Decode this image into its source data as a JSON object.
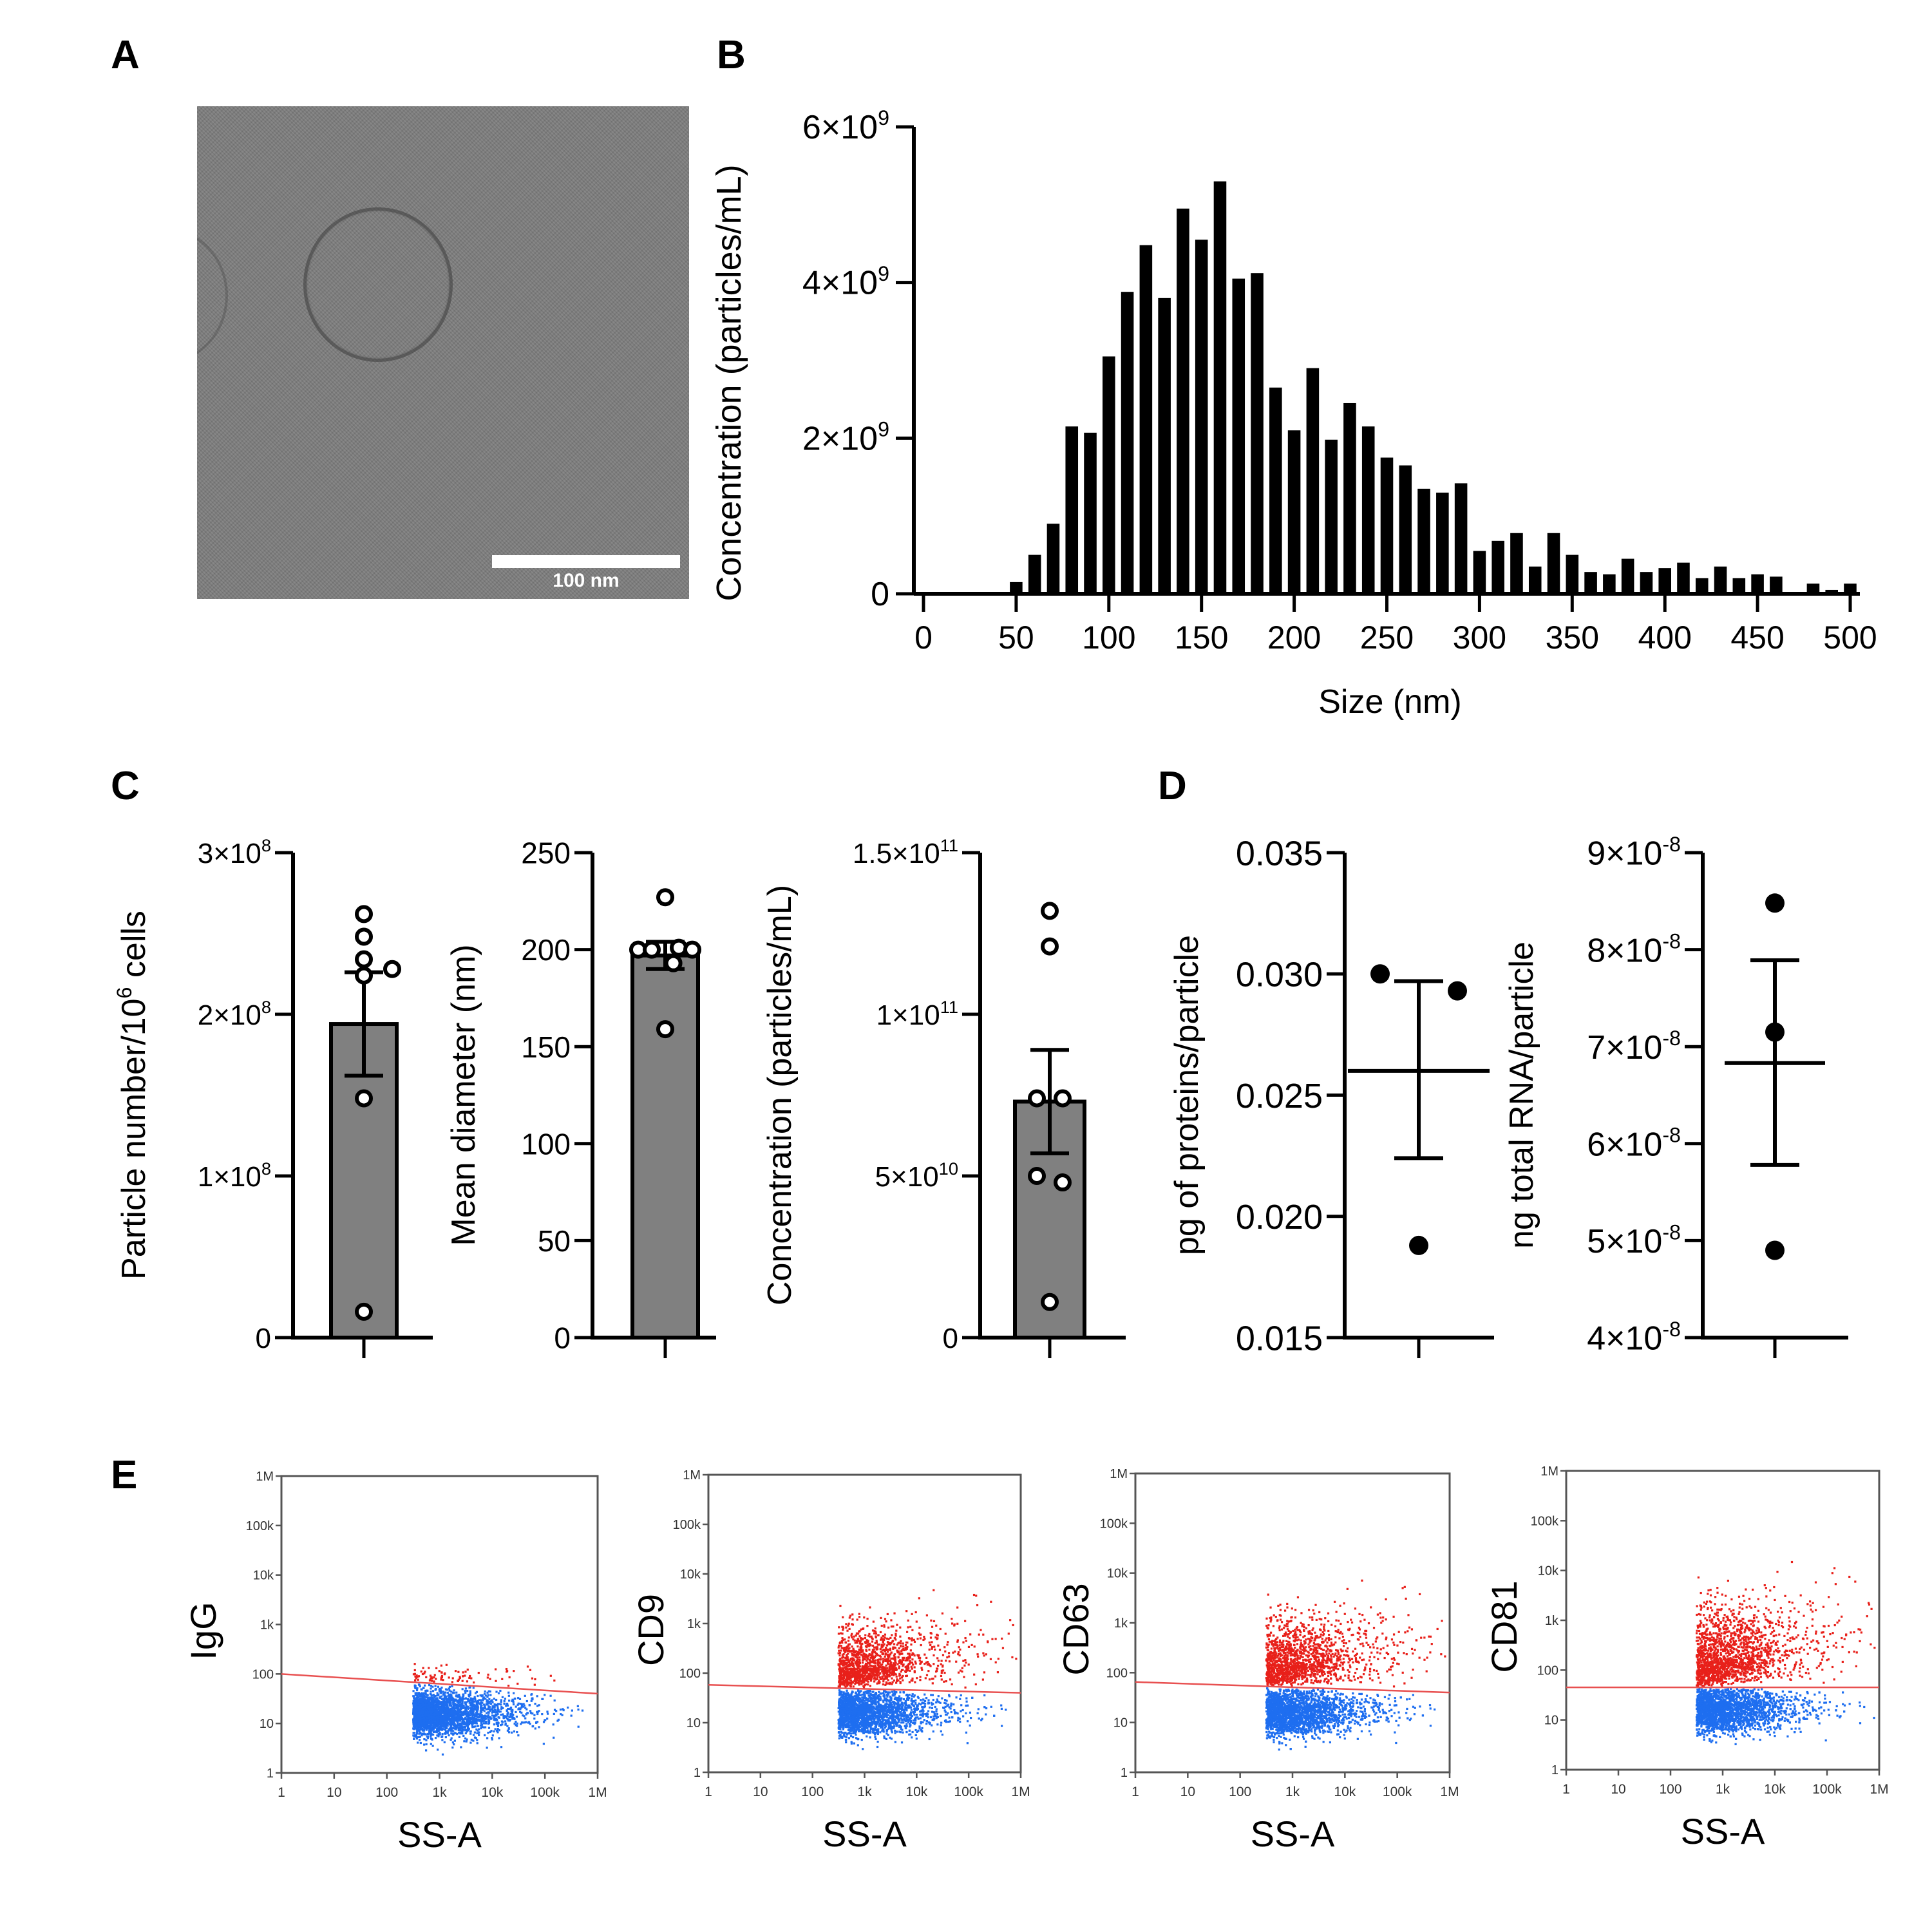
{
  "panels": {
    "A": {
      "letter": "A",
      "scale_bar_label": "100 nm"
    },
    "B": {
      "letter": "B"
    },
    "C": {
      "letter": "C"
    },
    "D": {
      "letter": "D"
    },
    "E": {
      "letter": "E"
    }
  },
  "chart_data": [
    {
      "id": "B",
      "type": "bar",
      "title": "",
      "xlabel": "Size (nm)",
      "ylabel": "Concentration (particles/mL)",
      "xlim": [
        0,
        500
      ],
      "ylim": [
        0,
        6000000000.0
      ],
      "xticks": [
        0,
        50,
        100,
        150,
        200,
        250,
        300,
        350,
        400,
        450,
        500
      ],
      "xtick_labels": [
        "0",
        "50",
        "100",
        "150",
        "200",
        "250",
        "300",
        "350",
        "400",
        "450",
        "500"
      ],
      "yticks": [
        0,
        2000000000.0,
        4000000000.0,
        6000000000.0
      ],
      "ytick_labels": [
        {
          "base": "0",
          "exp": ""
        },
        {
          "base": "2×10",
          "exp": "9"
        },
        {
          "base": "4×10",
          "exp": "9"
        },
        {
          "base": "6×10",
          "exp": "9"
        }
      ],
      "bin_width": 10,
      "x": [
        40,
        50,
        60,
        70,
        80,
        90,
        100,
        110,
        120,
        130,
        140,
        150,
        160,
        170,
        180,
        190,
        200,
        210,
        220,
        230,
        240,
        250,
        260,
        270,
        280,
        290,
        300,
        310,
        320,
        330,
        340,
        350,
        360,
        370,
        380,
        390,
        400,
        410,
        420,
        430,
        440,
        450,
        460,
        470,
        480,
        490,
        500
      ],
      "values": [
        10000000.0,
        150000000.0,
        500000000.0,
        900000000.0,
        2150000000.0,
        2070000000.0,
        3050000000.0,
        3880000000.0,
        4480000000.0,
        3800000000.0,
        4950000000.0,
        4550000000.0,
        5300000000.0,
        4050000000.0,
        4120000000.0,
        2650000000.0,
        2100000000.0,
        2900000000.0,
        1980000000.0,
        2450000000.0,
        2150000000.0,
        1750000000.0,
        1650000000.0,
        1350000000.0,
        1300000000.0,
        1420000000.0,
        550000000.0,
        680000000.0,
        780000000.0,
        350000000.0,
        780000000.0,
        500000000.0,
        280000000.0,
        250000000.0,
        450000000.0,
        280000000.0,
        330000000.0,
        400000000.0,
        200000000.0,
        350000000.0,
        200000000.0,
        250000000.0,
        220000000.0,
        20000000.0,
        130000000.0,
        50000000.0,
        130000000.0
      ],
      "grid": false
    },
    {
      "id": "C1",
      "type": "bar",
      "ylabel": "Particle number/10^6 cells",
      "ylabel_parts": {
        "pre": "Particle number/10",
        "sup": "6",
        "post": " cells"
      },
      "ylim": [
        0,
        300000000.0
      ],
      "yticks": [
        0,
        100000000.0,
        200000000.0,
        300000000.0
      ],
      "ytick_labels": [
        {
          "base": "0",
          "exp": ""
        },
        {
          "base": "1×10",
          "exp": "8"
        },
        {
          "base": "2×10",
          "exp": "8"
        },
        {
          "base": "3×10",
          "exp": "8"
        }
      ],
      "mean": 194000000.0,
      "sem_low": 162000000.0,
      "sem_high": 226000000.0,
      "points": [
        262000000.0,
        248000000.0,
        234000000.0,
        224000000.0,
        228000000.0,
        148000000.0,
        16000000.0
      ],
      "point_offsets": [
        0,
        0,
        0,
        0,
        1,
        0,
        0
      ],
      "marker": "open",
      "bar_fill": "#808080"
    },
    {
      "id": "C2",
      "type": "bar",
      "ylabel": "Mean diameter (nm)",
      "ylim": [
        0,
        250
      ],
      "yticks": [
        0,
        50,
        100,
        150,
        200,
        250
      ],
      "ytick_labels": [
        {
          "base": "0",
          "exp": ""
        },
        {
          "base": "50",
          "exp": ""
        },
        {
          "base": "100",
          "exp": ""
        },
        {
          "base": "150",
          "exp": ""
        },
        {
          "base": "200",
          "exp": ""
        },
        {
          "base": "250",
          "exp": ""
        }
      ],
      "mean": 197,
      "sem_low": 190,
      "sem_high": 204,
      "points": [
        227,
        200,
        200,
        201,
        200,
        193,
        159
      ],
      "point_offsets": [
        0,
        -1,
        -0.5,
        0.5,
        1,
        0.3,
        0
      ],
      "marker": "open",
      "bar_fill": "#808080"
    },
    {
      "id": "C3",
      "type": "bar",
      "ylabel": "Concentration (particles/mL)",
      "ylim": [
        0,
        150000000000.0
      ],
      "yticks": [
        0,
        50000000000.0,
        100000000000.0,
        150000000000.0
      ],
      "ytick_labels": [
        {
          "base": "0",
          "exp": ""
        },
        {
          "base": "5×10",
          "exp": "10"
        },
        {
          "base": "1×10",
          "exp": "11"
        },
        {
          "base": "1.5×10",
          "exp": "11"
        }
      ],
      "mean": 73000000000.0,
      "sem_low": 57000000000.0,
      "sem_high": 89000000000.0,
      "points": [
        132000000000.0,
        121000000000.0,
        74000000000.0,
        74000000000.0,
        50000000000.0,
        48000000000.0,
        11000000000.0
      ],
      "point_offsets": [
        0,
        0,
        -0.5,
        0.5,
        -0.5,
        0.5,
        0
      ],
      "marker": "open",
      "bar_fill": "#808080"
    },
    {
      "id": "D1",
      "type": "scatter",
      "ylabel": "pg of proteins/particle",
      "ylim": [
        0.015,
        0.035
      ],
      "yticks": [
        0.015,
        0.02,
        0.025,
        0.03,
        0.035
      ],
      "ytick_labels": [
        {
          "base": "0.015",
          "exp": ""
        },
        {
          "base": "0.020",
          "exp": ""
        },
        {
          "base": "0.025",
          "exp": ""
        },
        {
          "base": "0.030",
          "exp": ""
        },
        {
          "base": "0.035",
          "exp": ""
        }
      ],
      "mean": 0.026,
      "sem_low": 0.0224,
      "sem_high": 0.0297,
      "points": [
        0.03,
        0.0293,
        0.0188
      ],
      "point_offsets": [
        -1,
        1,
        0
      ],
      "marker": "filled"
    },
    {
      "id": "D2",
      "type": "scatter",
      "ylabel": "ng total RNA/particle",
      "ylim": [
        4e-08,
        9e-08
      ],
      "yticks": [
        4e-08,
        5e-08,
        6e-08,
        7e-08,
        8e-08,
        9e-08
      ],
      "ytick_labels": [
        {
          "base": "4×10",
          "exp": "-8"
        },
        {
          "base": "5×10",
          "exp": "-8"
        },
        {
          "base": "6×10",
          "exp": "-8"
        },
        {
          "base": "7×10",
          "exp": "-8"
        },
        {
          "base": "8×10",
          "exp": "-8"
        },
        {
          "base": "9×10",
          "exp": "-8"
        }
      ],
      "mean": 6.83e-08,
      "sem_low": 5.78e-08,
      "sem_high": 7.89e-08,
      "points": [
        8.48e-08,
        7.15e-08,
        4.9e-08
      ],
      "point_offsets": [
        0,
        0,
        0
      ],
      "marker": "filled"
    },
    {
      "id": "E",
      "type": "scatter",
      "subtype": "flow-cytometry-density",
      "xlabel": "SS-A",
      "axis_scale": "log",
      "xlim": [
        1,
        1000000
      ],
      "ylim": [
        1,
        1000000
      ],
      "tick_labels": [
        "1",
        "10",
        "100",
        "1k",
        "10k",
        "100k",
        "1M"
      ],
      "colors": {
        "positive": "#e8201a",
        "negative": "#1e6ef0",
        "gate": "#e85050"
      },
      "plots": [
        {
          "ylabel": "IgG",
          "gate_y": [
            100,
            40
          ],
          "pos_spread": 0.35,
          "pos_upper": 2.3,
          "pos_count": 90
        },
        {
          "ylabel": "CD9",
          "gate_y": [
            58,
            40
          ],
          "pos_spread": 0.9,
          "pos_upper": 4.3,
          "pos_count": 1400
        },
        {
          "ylabel": "CD63",
          "gate_y": [
            65,
            40
          ],
          "pos_spread": 1.0,
          "pos_upper": 4.2,
          "pos_count": 1500
        },
        {
          "ylabel": "CD81",
          "gate_y": [
            45,
            45
          ],
          "pos_spread": 1.2,
          "pos_upper": 4.2,
          "pos_count": 1700
        }
      ]
    }
  ]
}
